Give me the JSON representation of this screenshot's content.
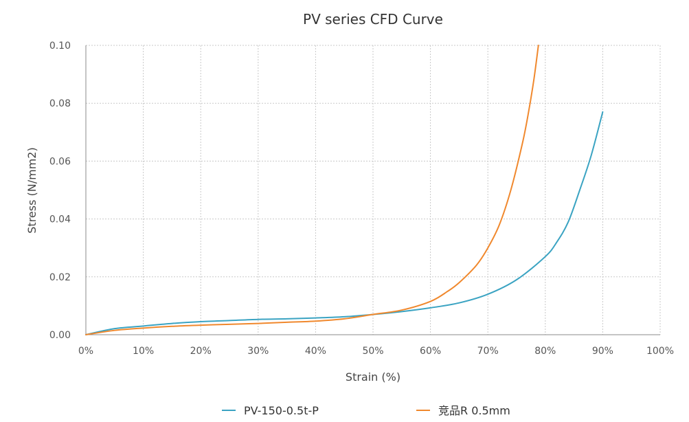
{
  "chart_data": {
    "type": "line",
    "title": "PV series CFD Curve",
    "xlabel": "Strain (%)",
    "ylabel": "Stress (N/mm2)",
    "xlim": [
      0,
      100
    ],
    "ylim": [
      0,
      0.1
    ],
    "x_ticks": [
      0,
      10,
      20,
      30,
      40,
      50,
      60,
      70,
      80,
      90,
      100
    ],
    "x_tick_labels": [
      "0%",
      "10%",
      "20%",
      "30%",
      "40%",
      "50%",
      "60%",
      "70%",
      "80%",
      "90%",
      "100%"
    ],
    "y_ticks": [
      0,
      0.02,
      0.04,
      0.06,
      0.08,
      0.1
    ],
    "y_tick_labels": [
      "0.00",
      "0.02",
      "0.04",
      "0.06",
      "0.08",
      "0.10"
    ],
    "grid": true,
    "legend_position": "bottom",
    "series": [
      {
        "name": "PV-150-0.5t-P",
        "color": "#3aa3c2",
        "x": [
          0,
          5,
          10,
          15,
          20,
          25,
          30,
          35,
          40,
          45,
          50,
          55,
          60,
          65,
          70,
          75,
          80,
          82,
          84,
          86,
          88,
          90
        ],
        "y": [
          0,
          0.0021,
          0.003,
          0.0039,
          0.0045,
          0.0049,
          0.0053,
          0.0055,
          0.0058,
          0.0062,
          0.007,
          0.008,
          0.0093,
          0.011,
          0.014,
          0.019,
          0.027,
          0.032,
          0.039,
          0.05,
          0.062,
          0.077
        ]
      },
      {
        "name": "竞品R 0.5mm",
        "color": "#f0882d",
        "x": [
          0,
          5,
          10,
          15,
          20,
          25,
          30,
          35,
          40,
          45,
          50,
          55,
          60,
          63,
          65,
          68,
          70,
          72,
          74,
          76,
          77,
          78,
          78.8
        ],
        "y": [
          0,
          0.0015,
          0.0023,
          0.0029,
          0.0033,
          0.0036,
          0.0039,
          0.0043,
          0.0047,
          0.0055,
          0.007,
          0.0085,
          0.0115,
          0.015,
          0.018,
          0.024,
          0.03,
          0.038,
          0.05,
          0.066,
          0.076,
          0.088,
          0.1
        ]
      }
    ]
  }
}
